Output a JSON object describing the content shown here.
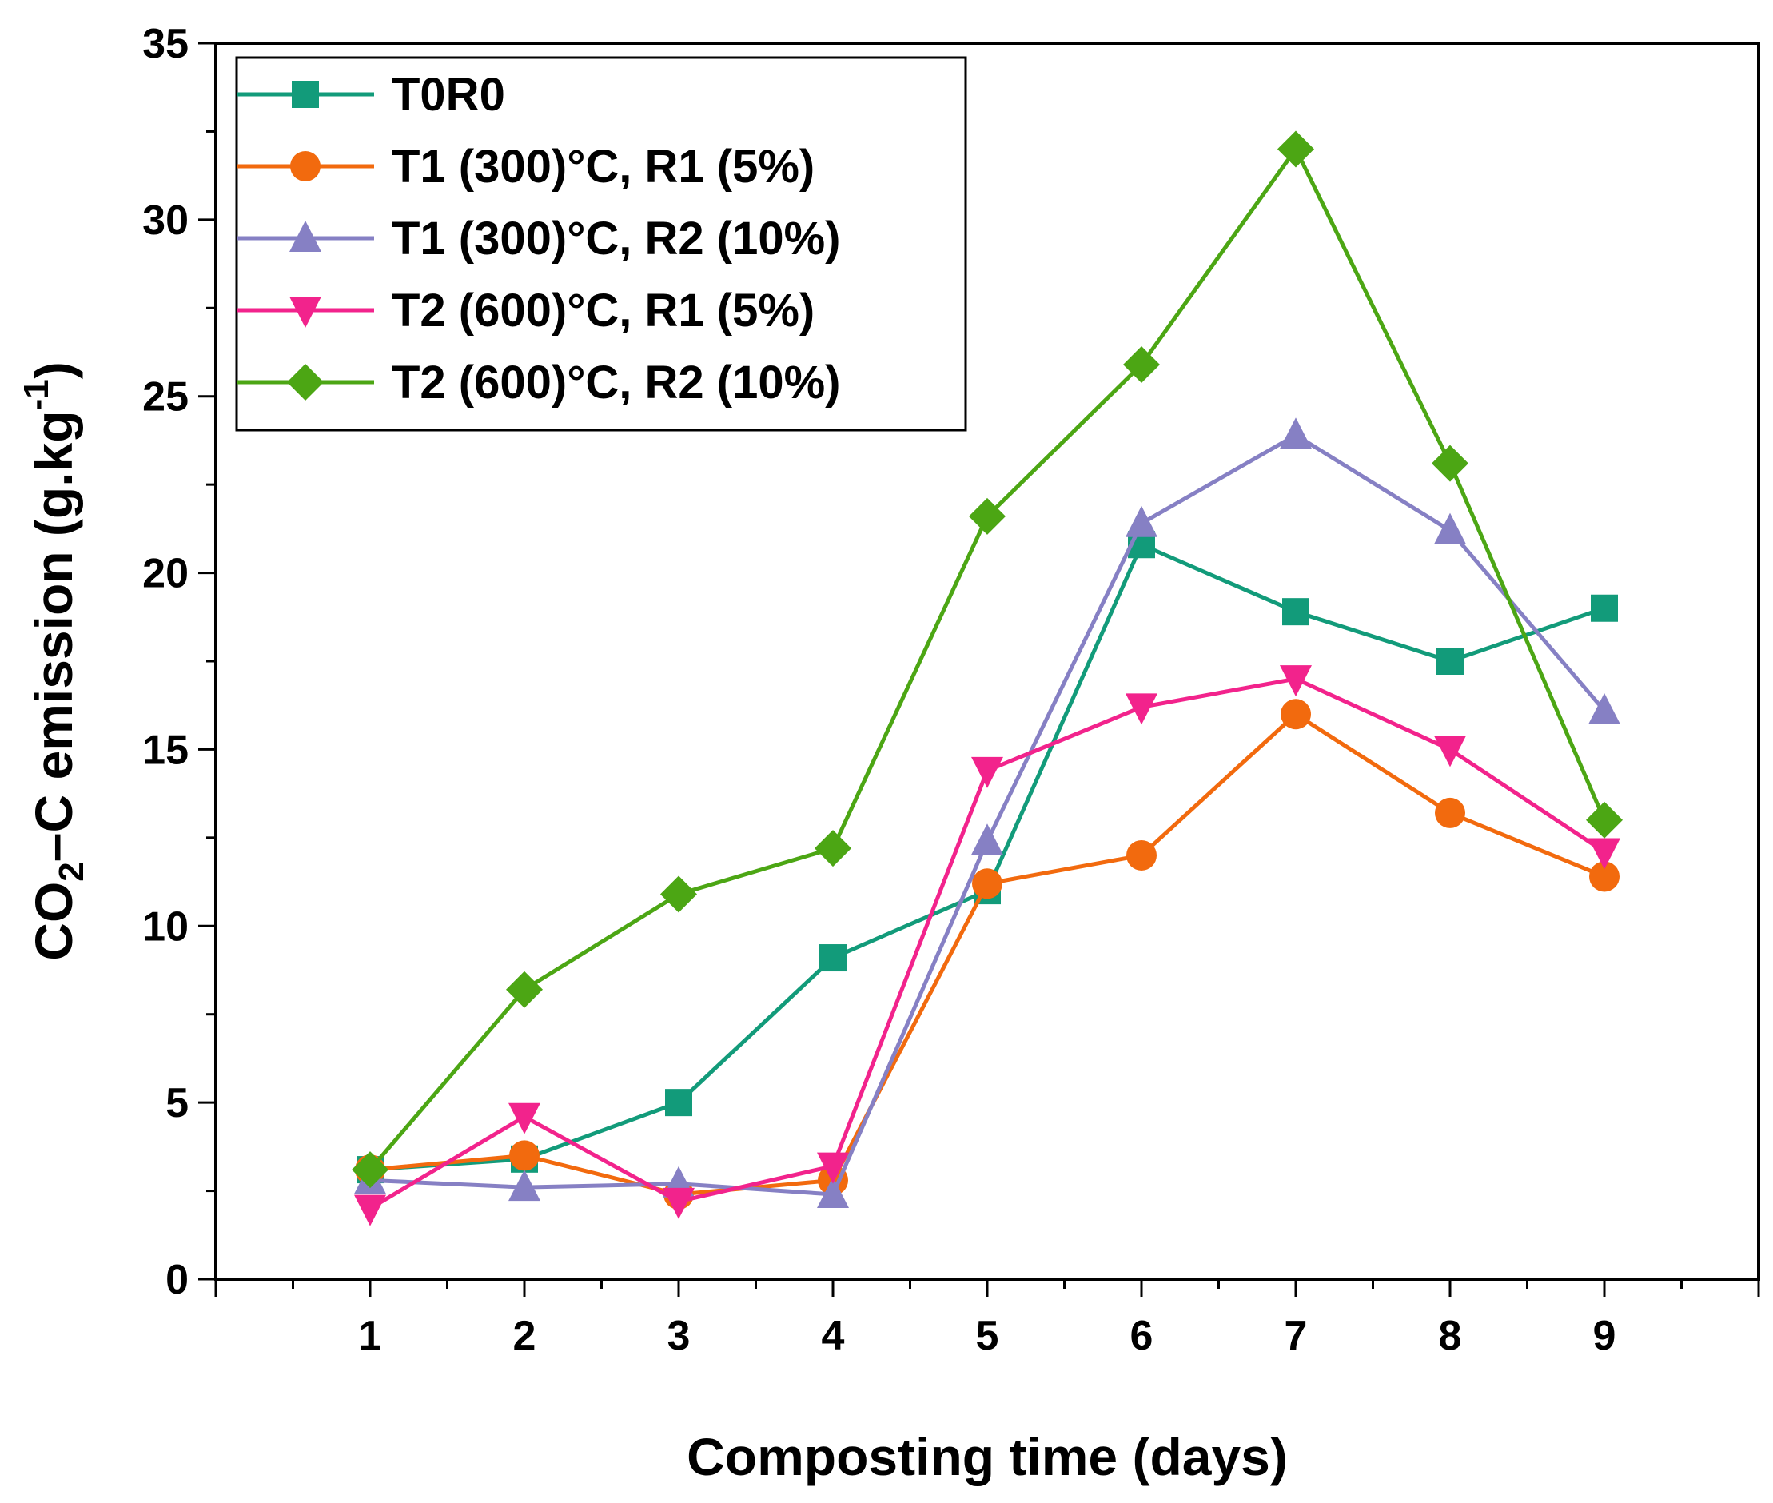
{
  "chart_data": {
    "type": "line",
    "title": "",
    "xlabel": "Composting time (days)",
    "ylabel": {
      "prefix": "CO",
      "subscript": "2",
      "middle": "–C emission (g.kg",
      "superscript": "-1",
      "suffix": ")"
    },
    "x": [
      1,
      2,
      3,
      4,
      5,
      6,
      7,
      8,
      9
    ],
    "x_tick_labels": [
      "1",
      "2",
      "3",
      "4",
      "5",
      "6",
      "7",
      "8",
      "9"
    ],
    "xlim": [
      0,
      10
    ],
    "ylim": [
      0,
      35
    ],
    "y_ticks": [
      0,
      5,
      10,
      15,
      20,
      25,
      30,
      35
    ],
    "y_tick_labels": [
      "0",
      "5",
      "10",
      "15",
      "20",
      "25",
      "30",
      "35"
    ],
    "grid": false,
    "legend_position": "top-left",
    "series": [
      {
        "name": "T0R0",
        "color": "#129b7a",
        "marker": "square",
        "values": [
          3.1,
          3.4,
          5.0,
          9.1,
          11.0,
          20.8,
          18.9,
          17.5,
          19.0
        ]
      },
      {
        "name": "T1 (300)°C, R1 (5%)",
        "color": "#f26a0e",
        "marker": "circle",
        "values": [
          3.1,
          3.5,
          2.4,
          2.8,
          11.2,
          12.0,
          16.0,
          13.2,
          11.4
        ]
      },
      {
        "name": "T1 (300)°C, R2 (10%)",
        "color": "#8680c4",
        "marker": "triangle-up",
        "values": [
          2.8,
          2.6,
          2.7,
          2.4,
          12.4,
          21.4,
          23.9,
          21.2,
          16.1
        ]
      },
      {
        "name": "T2 (600)°C, R1 (5%)",
        "color": "#f2238c",
        "marker": "triangle-down",
        "values": [
          2.0,
          4.6,
          2.2,
          3.2,
          14.4,
          16.2,
          17.0,
          15.0,
          12.1
        ]
      },
      {
        "name": "T2 (600)°C, R2 (10%)",
        "color": "#4ca614",
        "marker": "diamond",
        "values": [
          3.1,
          8.2,
          10.9,
          12.2,
          21.6,
          25.9,
          32.0,
          23.1,
          13.0
        ]
      }
    ]
  }
}
